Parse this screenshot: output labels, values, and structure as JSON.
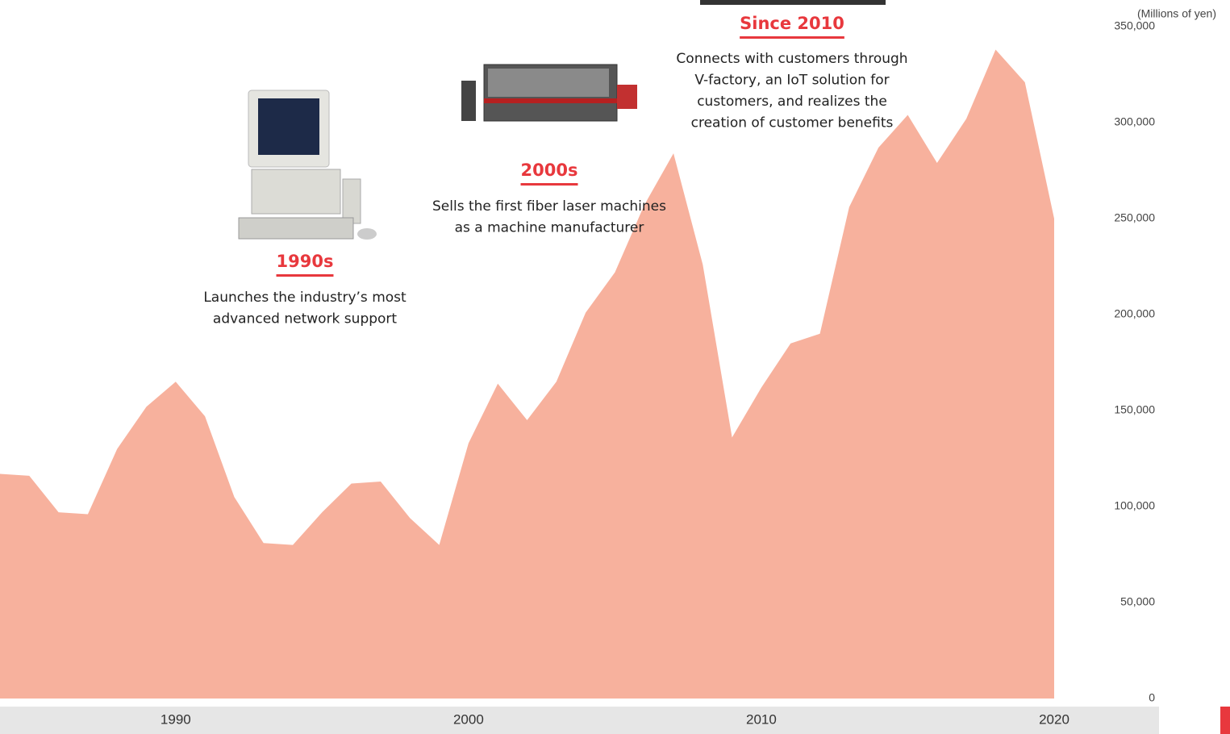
{
  "chart_data": {
    "type": "area",
    "y_axis_label": "(Millions of yen)",
    "x": [
      1984,
      1985,
      1986,
      1987,
      1988,
      1989,
      1990,
      1991,
      1992,
      1993,
      1994,
      1995,
      1996,
      1997,
      1998,
      1999,
      2000,
      2001,
      2002,
      2003,
      2004,
      2005,
      2006,
      2007,
      2008,
      2009,
      2010,
      2011,
      2012,
      2013,
      2014,
      2015,
      2016,
      2017,
      2018,
      2019,
      2020
    ],
    "values": [
      117000,
      116000,
      97000,
      96000,
      130000,
      152000,
      165000,
      147000,
      105000,
      81000,
      80000,
      97000,
      112000,
      113000,
      94000,
      80000,
      133000,
      164000,
      145000,
      165000,
      201000,
      222000,
      257000,
      284000,
      226000,
      136000,
      162000,
      185000,
      190000,
      256000,
      287000,
      304000,
      279000,
      302000,
      338000,
      321000,
      250000
    ],
    "color": "#f7b19d",
    "xlim": [
      1984,
      2020
    ],
    "xticks": [
      1990,
      2000,
      2010,
      2020
    ],
    "ylim": [
      0,
      350000
    ],
    "yticks": [
      0,
      {
        "value": 50000,
        "label": "50,000"
      },
      {
        "value": 100000,
        "label": "100,000"
      },
      {
        "value": 150000,
        "label": "150,000"
      },
      {
        "value": 200000,
        "label": "200,000"
      },
      {
        "value": 250000,
        "label": "250,000"
      },
      {
        "value": 300000,
        "label": "300,000"
      },
      {
        "value": 350000,
        "label": "350,000"
      }
    ],
    "annotations": [
      {
        "title": "1990s",
        "lines": [
          "Launches the industry’s most",
          "advanced network support"
        ]
      },
      {
        "title": "2000s",
        "lines": [
          "Sells the first fiber laser machines",
          "as a machine manufacturer"
        ]
      },
      {
        "title": "Since 2010",
        "lines": [
          "Connects with customers through",
          "V-factory, an IoT solution for",
          "customers, and realizes the",
          "creation of customer benefits"
        ]
      }
    ]
  }
}
